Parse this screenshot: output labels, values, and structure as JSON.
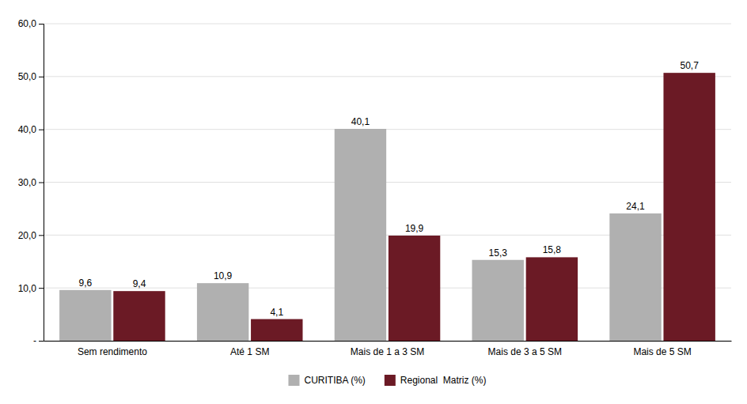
{
  "chart_data": {
    "type": "bar",
    "categories": [
      "Sem rendimento",
      "Até 1 SM",
      "Mais de 1 a 3 SM",
      "Mais de 3 a 5 SM",
      "Mais de 5 SM"
    ],
    "series": [
      {
        "name": "CURITIBA (%)",
        "color": "#B0B0B0",
        "values": [
          9.6,
          10.9,
          40.1,
          15.3,
          24.1
        ],
        "value_labels": [
          "9,6",
          "10,9",
          "40,1",
          "15,3",
          "24,1"
        ]
      },
      {
        "name": "Regional  Matriz (%)",
        "color": "#6B1A25",
        "values": [
          9.4,
          4.1,
          19.9,
          15.8,
          50.7
        ],
        "value_labels": [
          "9,4",
          "4,1",
          "19,9",
          "15,8",
          "50,7"
        ]
      }
    ],
    "ylim": [
      0,
      60
    ],
    "yticks": [
      {
        "value": 0,
        "label": "-"
      },
      {
        "value": 10,
        "label": "10,0"
      },
      {
        "value": 20,
        "label": "20,0"
      },
      {
        "value": 30,
        "label": "30,0"
      },
      {
        "value": 40,
        "label": "40,0"
      },
      {
        "value": 50,
        "label": "50,0"
      },
      {
        "value": 60,
        "label": "60,0"
      }
    ],
    "grid": true,
    "data_labels": true,
    "legend": "bottom"
  }
}
